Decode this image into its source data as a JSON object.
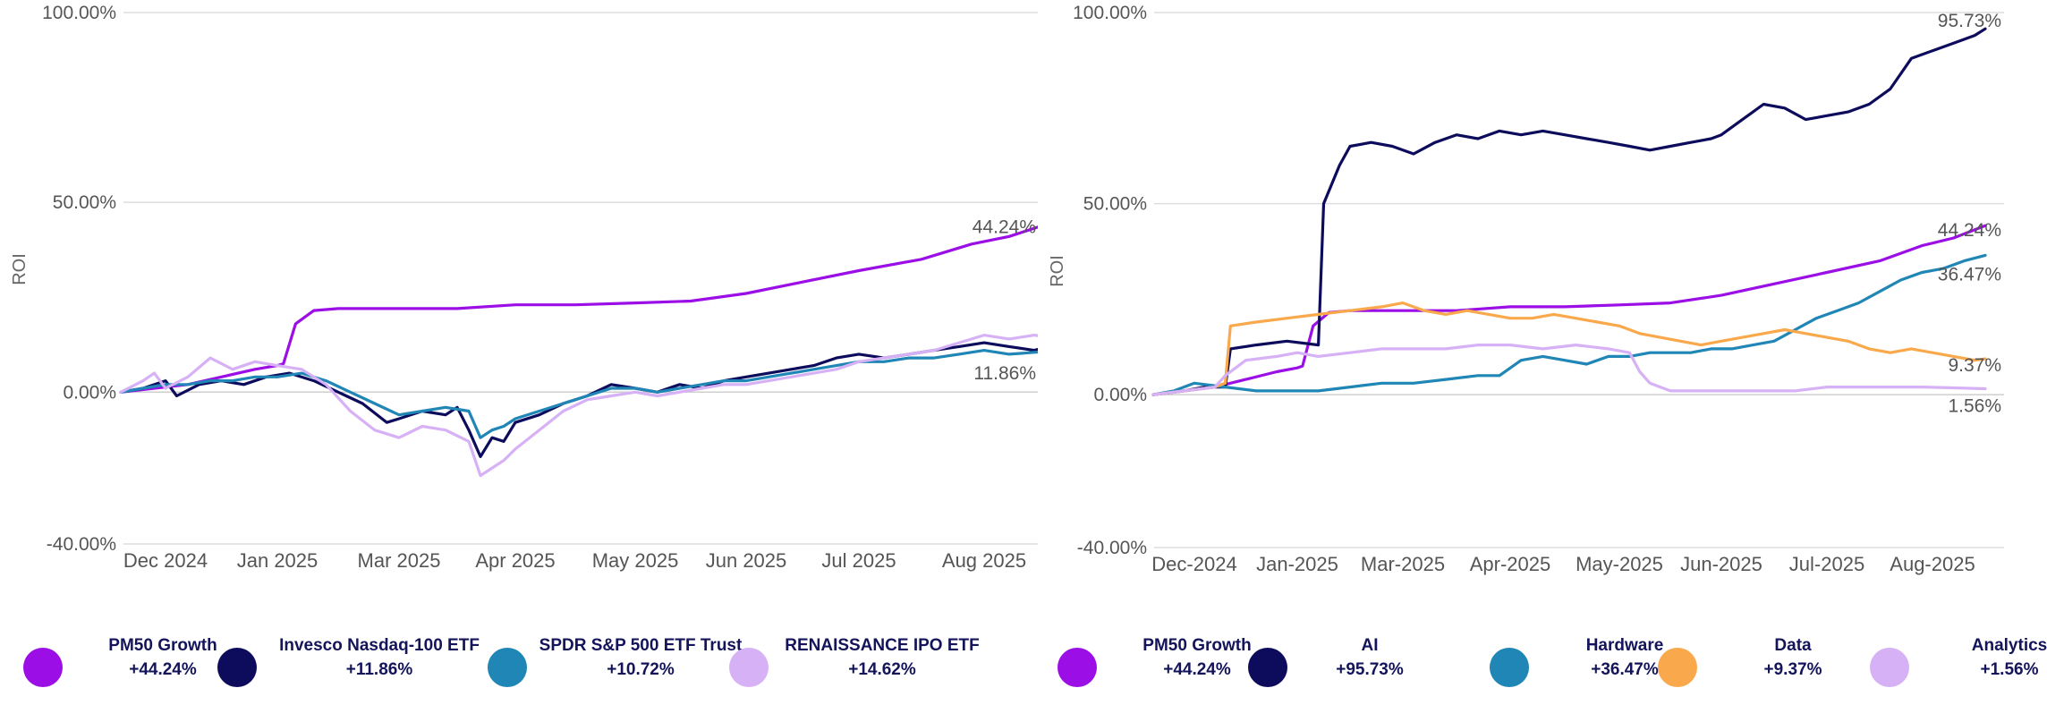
{
  "chart_data": [
    {
      "type": "line",
      "ylabel": "ROI",
      "xlabel": "",
      "title": "",
      "ylim": [
        -40,
        100
      ],
      "y_ticks": [
        "100.00%",
        "50.00%",
        "0.00%",
        "-40.00%"
      ],
      "y_tick_values": [
        100,
        50,
        0,
        -40
      ],
      "x_ticks": [
        "Dec 2024",
        "Jan 2025",
        "Mar 2025",
        "Apr 2025",
        "May 2025",
        "Jun 2025",
        "Jul 2025",
        "Aug 2025"
      ],
      "x_tick_positions": [
        1,
        2,
        3,
        4,
        5,
        6,
        7,
        8
      ],
      "xlim": [
        0.6,
        8.5
      ],
      "grid": true,
      "end_labels": [
        {
          "text": "44.24%",
          "series": 0
        },
        {
          "text": "11.86%",
          "series": 1
        }
      ],
      "series": [
        {
          "name": "PM50 Growth",
          "legend_value": "+44.24%",
          "color": "#9b0ee6",
          "x": [
            0.6,
            0.9,
            1.2,
            1.5,
            1.8,
            2.0,
            2.05,
            2.15,
            2.3,
            2.5,
            3.0,
            3.5,
            4.0,
            4.5,
            5.0,
            5.5,
            6.0,
            6.5,
            7.0,
            7.5,
            7.9,
            8.2,
            8.5
          ],
          "y": [
            0,
            1,
            2,
            4,
            6,
            7,
            7.5,
            18,
            21.5,
            22,
            22,
            22,
            23,
            23,
            23.5,
            24,
            26,
            29,
            32,
            35,
            39,
            41,
            44.24
          ]
        },
        {
          "name": "Invesco Nasdaq-100 ETF",
          "legend_value": "+11.86%",
          "color": "#0d0b5c",
          "x": [
            0.6,
            0.8,
            1.0,
            1.1,
            1.3,
            1.5,
            1.7,
            1.9,
            2.1,
            2.3,
            2.5,
            2.7,
            2.9,
            3.0,
            3.2,
            3.4,
            3.5,
            3.6,
            3.7,
            3.8,
            3.9,
            4.0,
            4.2,
            4.4,
            4.6,
            4.8,
            5.0,
            5.2,
            5.4,
            5.6,
            5.8,
            6.0,
            6.2,
            6.4,
            6.6,
            6.8,
            7.0,
            7.2,
            7.4,
            7.6,
            7.8,
            8.0,
            8.2,
            8.4,
            8.5
          ],
          "y": [
            0,
            1,
            3,
            -1,
            2,
            3,
            2,
            4,
            5,
            3,
            0,
            -3,
            -8,
            -7,
            -5,
            -6,
            -4,
            -10,
            -17,
            -12,
            -13,
            -8,
            -6,
            -3,
            -1,
            2,
            1,
            0,
            2,
            1,
            3,
            4,
            5,
            6,
            7,
            9,
            10,
            9,
            10,
            11,
            12,
            13,
            12,
            11,
            11.86
          ]
        },
        {
          "name": "SPDR S&P 500 ETF Trust",
          "legend_value": "+10.72%",
          "color": "#1f86b6",
          "x": [
            0.6,
            0.8,
            1.0,
            1.2,
            1.4,
            1.6,
            1.8,
            2.0,
            2.2,
            2.4,
            2.6,
            2.8,
            3.0,
            3.2,
            3.4,
            3.6,
            3.7,
            3.8,
            3.9,
            4.0,
            4.2,
            4.4,
            4.6,
            4.8,
            5.0,
            5.2,
            5.4,
            5.6,
            5.8,
            6.0,
            6.2,
            6.4,
            6.6,
            6.8,
            7.0,
            7.2,
            7.4,
            7.6,
            7.8,
            8.0,
            8.2,
            8.5
          ],
          "y": [
            0,
            1,
            2,
            2,
            3,
            3,
            4,
            4,
            5,
            3,
            0,
            -3,
            -6,
            -5,
            -4,
            -5,
            -12,
            -10,
            -9,
            -7,
            -5,
            -3,
            -1,
            1,
            1,
            0,
            1,
            2,
            3,
            3,
            4,
            5,
            6,
            7,
            8,
            8,
            9,
            9,
            10,
            11,
            10,
            10.72
          ]
        },
        {
          "name": "RENAISSANCE IPO ETF",
          "legend_value": "+14.62%",
          "color": "#d7b1f6",
          "x": [
            0.6,
            0.8,
            0.9,
            1.0,
            1.2,
            1.4,
            1.6,
            1.8,
            2.0,
            2.2,
            2.4,
            2.6,
            2.8,
            3.0,
            3.2,
            3.4,
            3.6,
            3.7,
            3.8,
            3.9,
            4.0,
            4.2,
            4.4,
            4.6,
            4.8,
            5.0,
            5.2,
            5.4,
            5.6,
            5.8,
            6.0,
            6.2,
            6.4,
            6.6,
            6.8,
            7.0,
            7.2,
            7.4,
            7.6,
            7.8,
            8.0,
            8.2,
            8.4,
            8.5
          ],
          "y": [
            0,
            3,
            5,
            1,
            4,
            9,
            6,
            8,
            7,
            6,
            2,
            -5,
            -10,
            -12,
            -9,
            -10,
            -13,
            -22,
            -20,
            -18,
            -15,
            -10,
            -5,
            -2,
            -1,
            0,
            -1,
            0,
            1,
            2,
            2,
            3,
            4,
            5,
            6,
            8,
            9,
            10,
            11,
            13,
            15,
            14,
            15,
            14.62
          ]
        }
      ]
    },
    {
      "type": "line",
      "ylabel": "ROI",
      "xlabel": "",
      "title": "",
      "ylim": [
        -40,
        100
      ],
      "y_ticks": [
        "100.00%",
        "50.00%",
        "0.00%",
        "-40.00%"
      ],
      "y_tick_values": [
        100,
        50,
        0,
        -40
      ],
      "x_ticks": [
        "Dec-2024",
        "Jan-2025",
        "Mar-2025",
        "Apr-2025",
        "May-2025",
        "Jun-2025",
        "Jul-2025",
        "Aug-2025"
      ],
      "x_tick_positions": [
        1,
        2,
        3,
        4,
        5,
        6,
        7,
        8
      ],
      "xlim": [
        0.6,
        8.5
      ],
      "grid": true,
      "end_labels": [
        {
          "text": "95.73%",
          "series": 1
        },
        {
          "text": "44.24%",
          "series": 0
        },
        {
          "text": "36.47%",
          "series": 2
        },
        {
          "text": "9.37%",
          "series": 3
        },
        {
          "text": "1.56%",
          "series": 4
        }
      ],
      "series": [
        {
          "name": "PM50 Growth",
          "legend_value": "+44.24%",
          "color": "#9b0ee6",
          "x": [
            0.6,
            0.9,
            1.2,
            1.5,
            1.8,
            2.0,
            2.05,
            2.15,
            2.3,
            2.5,
            3.0,
            3.5,
            4.0,
            4.5,
            5.0,
            5.5,
            6.0,
            6.5,
            7.0,
            7.5,
            7.9,
            8.2,
            8.5
          ],
          "y": [
            0,
            1,
            2,
            4,
            6,
            7,
            7.5,
            18,
            21.5,
            22,
            22,
            22,
            23,
            23,
            23.5,
            24,
            26,
            29,
            32,
            35,
            39,
            41,
            44.24
          ]
        },
        {
          "name": "AI",
          "legend_value": "+95.73%",
          "color": "#0d0b5c",
          "x": [
            0.6,
            0.9,
            1.1,
            1.3,
            1.35,
            1.6,
            1.9,
            2.2,
            2.25,
            2.4,
            2.5,
            2.7,
            2.9,
            3.1,
            3.3,
            3.5,
            3.7,
            3.9,
            4.1,
            4.3,
            4.5,
            4.7,
            4.9,
            5.1,
            5.3,
            5.5,
            5.7,
            5.9,
            6.0,
            6.2,
            6.4,
            6.6,
            6.8,
            7.0,
            7.2,
            7.4,
            7.6,
            7.8,
            8.0,
            8.2,
            8.4,
            8.5
          ],
          "y": [
            0,
            1,
            2,
            2,
            12,
            13,
            14,
            13,
            50,
            60,
            65,
            66,
            65,
            63,
            66,
            68,
            67,
            69,
            68,
            69,
            68,
            67,
            66,
            65,
            64,
            65,
            66,
            67,
            68,
            72,
            76,
            75,
            72,
            73,
            74,
            76,
            80,
            88,
            90,
            92,
            94,
            95.73
          ]
        },
        {
          "name": "Hardware",
          "legend_value": "+36.47%",
          "color": "#1f86b6",
          "x": [
            0.6,
            0.8,
            1.0,
            1.3,
            1.6,
            1.9,
            2.2,
            2.5,
            2.8,
            3.1,
            3.4,
            3.7,
            3.9,
            4.1,
            4.3,
            4.5,
            4.7,
            4.9,
            5.1,
            5.3,
            5.5,
            5.7,
            5.9,
            6.1,
            6.3,
            6.5,
            6.7,
            6.9,
            7.1,
            7.3,
            7.5,
            7.7,
            7.9,
            8.1,
            8.3,
            8.5
          ],
          "y": [
            0,
            1,
            3,
            2,
            1,
            1,
            1,
            2,
            3,
            3,
            4,
            5,
            5,
            9,
            10,
            9,
            8,
            10,
            10,
            11,
            11,
            11,
            12,
            12,
            13,
            14,
            17,
            20,
            22,
            24,
            27,
            30,
            32,
            33,
            35,
            36.47
          ]
        },
        {
          "name": "Data",
          "legend_value": "+9.37%",
          "color": "#f9a94b",
          "x": [
            0.6,
            0.9,
            1.2,
            1.3,
            1.35,
            1.6,
            1.9,
            2.2,
            2.5,
            2.8,
            3.0,
            3.2,
            3.4,
            3.6,
            3.8,
            4.0,
            4.2,
            4.4,
            4.6,
            4.8,
            5.0,
            5.2,
            5.4,
            5.6,
            5.8,
            6.0,
            6.2,
            6.4,
            6.6,
            6.8,
            7.0,
            7.2,
            7.4,
            7.6,
            7.8,
            8.0,
            8.2,
            8.4,
            8.5
          ],
          "y": [
            0,
            1,
            2,
            3,
            18,
            19,
            20,
            21,
            22,
            23,
            24,
            22,
            21,
            22,
            21,
            20,
            20,
            21,
            20,
            19,
            18,
            16,
            15,
            14,
            13,
            14,
            15,
            16,
            17,
            16,
            15,
            14,
            12,
            11,
            12,
            11,
            10,
            9,
            9.37
          ]
        },
        {
          "name": "Analytics",
          "legend_value": "+1.56%",
          "color": "#d7b1f6",
          "x": [
            0.6,
            0.9,
            1.2,
            1.3,
            1.5,
            1.8,
            2.0,
            2.2,
            2.5,
            2.8,
            3.1,
            3.4,
            3.7,
            4.0,
            4.3,
            4.6,
            4.9,
            5.1,
            5.2,
            5.3,
            5.5,
            5.8,
            6.1,
            6.4,
            6.7,
            7.0,
            7.3,
            7.6,
            7.9,
            8.2,
            8.5
          ],
          "y": [
            0,
            1,
            2,
            5,
            9,
            10,
            11,
            10,
            11,
            12,
            12,
            12,
            13,
            13,
            12,
            13,
            12,
            11,
            6,
            3,
            1,
            1,
            1,
            1,
            1,
            2,
            2,
            2,
            2,
            1.8,
            1.56
          ]
        }
      ]
    }
  ]
}
